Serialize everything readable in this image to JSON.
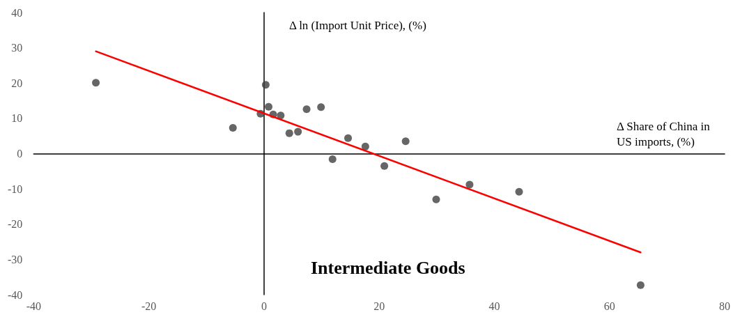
{
  "chart_data": {
    "type": "scatter",
    "title": "Intermediate Goods",
    "xlabel": "Δ Share of China in US imports, (%)",
    "ylabel": "Δ ln (Import Unit Price), (%)",
    "xlim": [
      -40,
      80
    ],
    "xticks": [
      -40,
      -20,
      0,
      20,
      40,
      60,
      80
    ],
    "ylim": [
      -40,
      40
    ],
    "yticks": [
      -40,
      -30,
      -20,
      -10,
      0,
      10,
      20,
      30,
      40
    ],
    "series": [
      {
        "color": "#404040",
        "marker": "circle",
        "x": [
          -29.2,
          -5.4,
          -0.6,
          0.3,
          0.8,
          1.6,
          2.9,
          4.4,
          5.9,
          7.4,
          9.9,
          11.9,
          14.6,
          17.6,
          20.9,
          24.6,
          29.9,
          35.7,
          44.3,
          65.4
        ],
        "values": [
          20.1,
          7.3,
          11.3,
          19.5,
          13.3,
          11.1,
          10.8,
          5.8,
          6.2,
          12.6,
          13.2,
          -1.6,
          4.4,
          2.0,
          -3.5,
          3.5,
          -13.0,
          -8.8,
          -10.8,
          -37.3
        ]
      },
      {
        "type": "line",
        "color": "#ff0000",
        "marker": "none",
        "x": [
          -29.2,
          65.4
        ],
        "values": [
          29.0,
          -28.0
        ],
        "line_style": "solid"
      }
    ]
  }
}
